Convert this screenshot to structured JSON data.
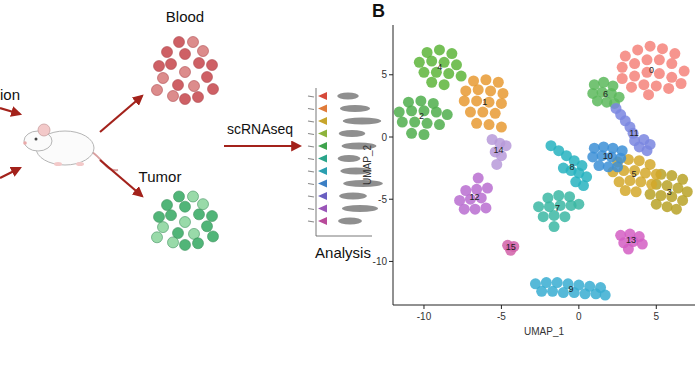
{
  "chart_data": {
    "type": "scatter",
    "panel_label": "B",
    "x_label": "UMAP_1",
    "y_label": "UMAP_2",
    "xlim": [
      -12,
      7.5
    ],
    "ylim": [
      -13.5,
      9
    ],
    "xticks": [
      -10,
      -5,
      0,
      5
    ],
    "yticks": [
      -10,
      -5,
      0,
      5
    ],
    "marker": "circle",
    "series": [
      {
        "name": "0",
        "color": "#f4837a",
        "x": [
          3,
          3.8,
          4.6,
          5.4,
          6.2,
          2.8,
          3.6,
          4.4,
          5.2,
          6,
          6.8,
          2.8,
          3.6,
          4.4,
          5.2,
          6,
          6.6,
          3.4,
          4.2,
          5,
          5.8,
          4.5
        ],
        "values": [
          6.5,
          7,
          7.3,
          7.1,
          6.7,
          5.6,
          5.9,
          6.2,
          6.2,
          5.9,
          5.3,
          4.7,
          4.9,
          5.2,
          5.1,
          4.8,
          4.3,
          4,
          4.2,
          4.1,
          3.9,
          3.4
        ]
      },
      {
        "name": "1",
        "color": "#e89a33",
        "x": [
          -6.8,
          -6,
          -5.2,
          -7.3,
          -6.5,
          -5.7,
          -4.9,
          -7.4,
          -6.6,
          -5.8,
          -5,
          -7,
          -6.2,
          -5.4,
          -6.6,
          -5.8,
          -5
        ],
        "values": [
          4.5,
          4.6,
          4.4,
          3.7,
          3.8,
          3.7,
          3.5,
          2.9,
          2.9,
          2.8,
          2.7,
          2,
          2,
          1.9,
          1.1,
          1,
          0.8
        ]
      },
      {
        "name": "2",
        "color": "#4fae4c",
        "x": [
          -11,
          -10.2,
          -9.4,
          -11.6,
          -10.8,
          -10,
          -9.2,
          -8.5,
          -11.4,
          -10.6,
          -9.8,
          -9,
          -10.8,
          -10
        ],
        "values": [
          2.8,
          2.9,
          2.7,
          2,
          2.1,
          2.1,
          2,
          1.8,
          1.2,
          1.2,
          1.1,
          1,
          0.3,
          0.2
        ]
      },
      {
        "name": "3",
        "color": "#b9a227",
        "x": [
          5.3,
          6,
          6.7,
          5,
          5.7,
          6.4,
          7,
          4.6,
          5.3,
          6,
          6.7,
          5,
          5.7,
          6.3
        ],
        "values": [
          -3,
          -3.1,
          -3.4,
          -3.8,
          -3.9,
          -4.1,
          -4.4,
          -4.6,
          -4.7,
          -4.8,
          -5.1,
          -5.4,
          -5.6,
          -5.8
        ]
      },
      {
        "name": "4",
        "color": "#5db53a",
        "x": [
          -9.8,
          -9,
          -8.2,
          -10.3,
          -9.5,
          -8.7,
          -7.9,
          -10,
          -9.2,
          -8.4,
          -7.6,
          -9.5,
          -8.7
        ],
        "values": [
          6.8,
          7,
          6.7,
          6,
          6.1,
          6,
          5.8,
          5.2,
          5.2,
          5.1,
          4.9,
          4.4,
          4.2
        ]
      },
      {
        "name": "5",
        "color": "#d4a82a",
        "x": [
          2.5,
          3.2,
          3.9,
          4.6,
          2.2,
          2.9,
          3.6,
          4.3,
          5,
          2.6,
          3.3,
          4,
          4.7,
          3,
          3.7
        ],
        "values": [
          -2,
          -1.8,
          -1.9,
          -2.2,
          -2.8,
          -2.7,
          -2.7,
          -2.9,
          -3,
          -3.6,
          -3.5,
          -3.6,
          -3.8,
          -4.3,
          -4.4
        ]
      },
      {
        "name": "6",
        "color": "#5cb85c",
        "x": [
          1,
          1.6,
          2.2,
          0.9,
          1.5,
          2.1,
          2.6,
          1.2,
          1.8,
          2.3
        ],
        "values": [
          4.2,
          4.4,
          4.1,
          3.5,
          3.6,
          3.5,
          3.2,
          2.9,
          2.8,
          2.7
        ]
      },
      {
        "name": "7",
        "color": "#3bb7a3",
        "x": [
          -2,
          -1.3,
          -0.6,
          -2.6,
          -1.9,
          -1.2,
          -0.5,
          0,
          -2.3,
          -1.6,
          -0.9,
          -1.6
        ],
        "values": [
          -4.9,
          -4.7,
          -4.8,
          -5.6,
          -5.6,
          -5.5,
          -5.5,
          -5.4,
          -6.4,
          -6.3,
          -6.4,
          -7.2
        ]
      },
      {
        "name": "8",
        "color": "#27b3c0",
        "x": [
          -1.8,
          -1.3,
          -0.8,
          -0.3,
          0.2,
          -1,
          -0.5,
          0,
          0.5,
          -0.2,
          0.3
        ],
        "values": [
          -0.7,
          -1.1,
          -1.5,
          -1.9,
          -2.3,
          -2.5,
          -2.7,
          -2.9,
          -3.2,
          -3.6,
          -3.9
        ]
      },
      {
        "name": "9",
        "color": "#38add1",
        "x": [
          -2.8,
          -2.1,
          -1.4,
          -0.7,
          0,
          0.7,
          1.4,
          -2.4,
          -1.7,
          -1,
          -0.3,
          0.4,
          1.1,
          1.7
        ],
        "values": [
          -11.8,
          -11.7,
          -11.7,
          -11.8,
          -11.9,
          -12,
          -12.1,
          -12.4,
          -12.4,
          -12.5,
          -12.5,
          -12.6,
          -12.6,
          -12.7
        ]
      },
      {
        "name": "10",
        "color": "#3c8fd6",
        "x": [
          1,
          1.6,
          2.2,
          2.8,
          0.9,
          1.5,
          2.1,
          2.7,
          1.3,
          1.9,
          2.5
        ],
        "values": [
          -0.9,
          -0.8,
          -0.9,
          -1.1,
          -1.6,
          -1.5,
          -1.6,
          -1.7,
          -2.3,
          -2.4,
          -2.4
        ]
      },
      {
        "name": "11",
        "color": "#7a86e0",
        "x": [
          2.4,
          2.7,
          3,
          3.3,
          3.5,
          3.6,
          4.2,
          4.6,
          3.9,
          4.4
        ],
        "values": [
          2.3,
          1.8,
          1.3,
          0.8,
          0.3,
          -0.3,
          -0.2,
          -0.6,
          -0.8,
          -1.1
        ]
      },
      {
        "name": "12",
        "color": "#b86dd0",
        "x": [
          -6.5,
          -7.3,
          -6.6,
          -5.9,
          -7.7,
          -7,
          -6.3,
          -7.4,
          -6.7,
          -6
        ],
        "values": [
          -3.3,
          -4.3,
          -4.2,
          -4.1,
          -5.1,
          -5,
          -4.9,
          -5.8,
          -5.8,
          -5.7
        ]
      },
      {
        "name": "13",
        "color": "#d35ec3",
        "x": [
          2.7,
          3.3,
          3.9,
          2.9,
          3.5,
          4.1,
          3.2
        ],
        "values": [
          -7.9,
          -7.8,
          -8,
          -8.5,
          -8.4,
          -8.6,
          -9
        ]
      },
      {
        "name": "14",
        "color": "#b79ad9",
        "x": [
          -5.6,
          -5.1,
          -4.7,
          -5.4,
          -5,
          -5.3
        ],
        "values": [
          -0.2,
          -0.5,
          -0.7,
          -1.2,
          -1.5,
          -2.2
        ]
      },
      {
        "name": "15",
        "color": "#d160a8",
        "x": [
          -4.6,
          -4.2,
          -4.4
        ],
        "values": [
          -8.7,
          -8.8,
          -9.1
        ]
      }
    ]
  },
  "diagram": {
    "left_label": "ion",
    "blood": "Blood",
    "tumor": "Tumor",
    "method": "scRNAseq",
    "analysis": "Analysis"
  }
}
